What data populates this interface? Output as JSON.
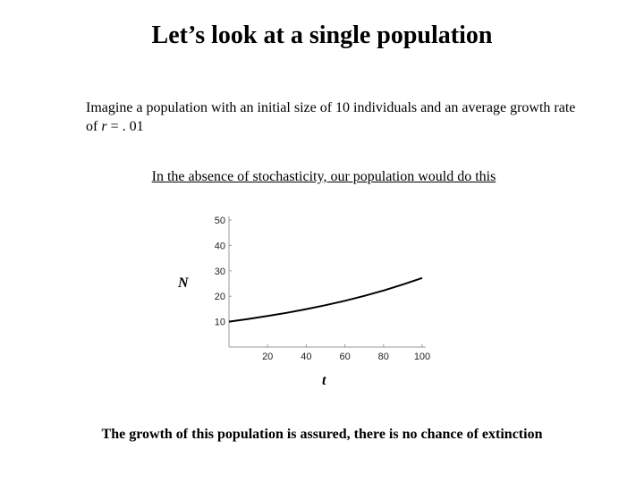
{
  "slide": {
    "title": "Let’s look at a single population",
    "intro_part1": "Imagine a population with an initial size of 10 individuals and an average growth rate of ",
    "intro_var": "r",
    "intro_part2": " = . 01",
    "subheading": "In the absence of stochasticity, our population would do this",
    "conclusion": "The growth of this population is assured, there is no chance of extinction"
  },
  "chart_data": {
    "type": "line",
    "title": "",
    "xlabel": "t",
    "ylabel": "N",
    "xlim": [
      0,
      100
    ],
    "ylim": [
      0,
      50
    ],
    "x_ticks": [
      20,
      40,
      60,
      80,
      100
    ],
    "y_ticks": [
      10,
      20,
      30,
      40,
      50
    ],
    "grid": false,
    "series": [
      {
        "x": [
          0,
          10,
          20,
          30,
          40,
          50,
          60,
          70,
          80,
          90,
          100
        ],
        "y": [
          10.0,
          11.05,
          12.21,
          13.5,
          14.92,
          16.49,
          18.22,
          20.14,
          22.26,
          24.6,
          27.18
        ]
      }
    ],
    "colors": {
      "line": "#000000",
      "axis": "#9a9a9a"
    }
  }
}
